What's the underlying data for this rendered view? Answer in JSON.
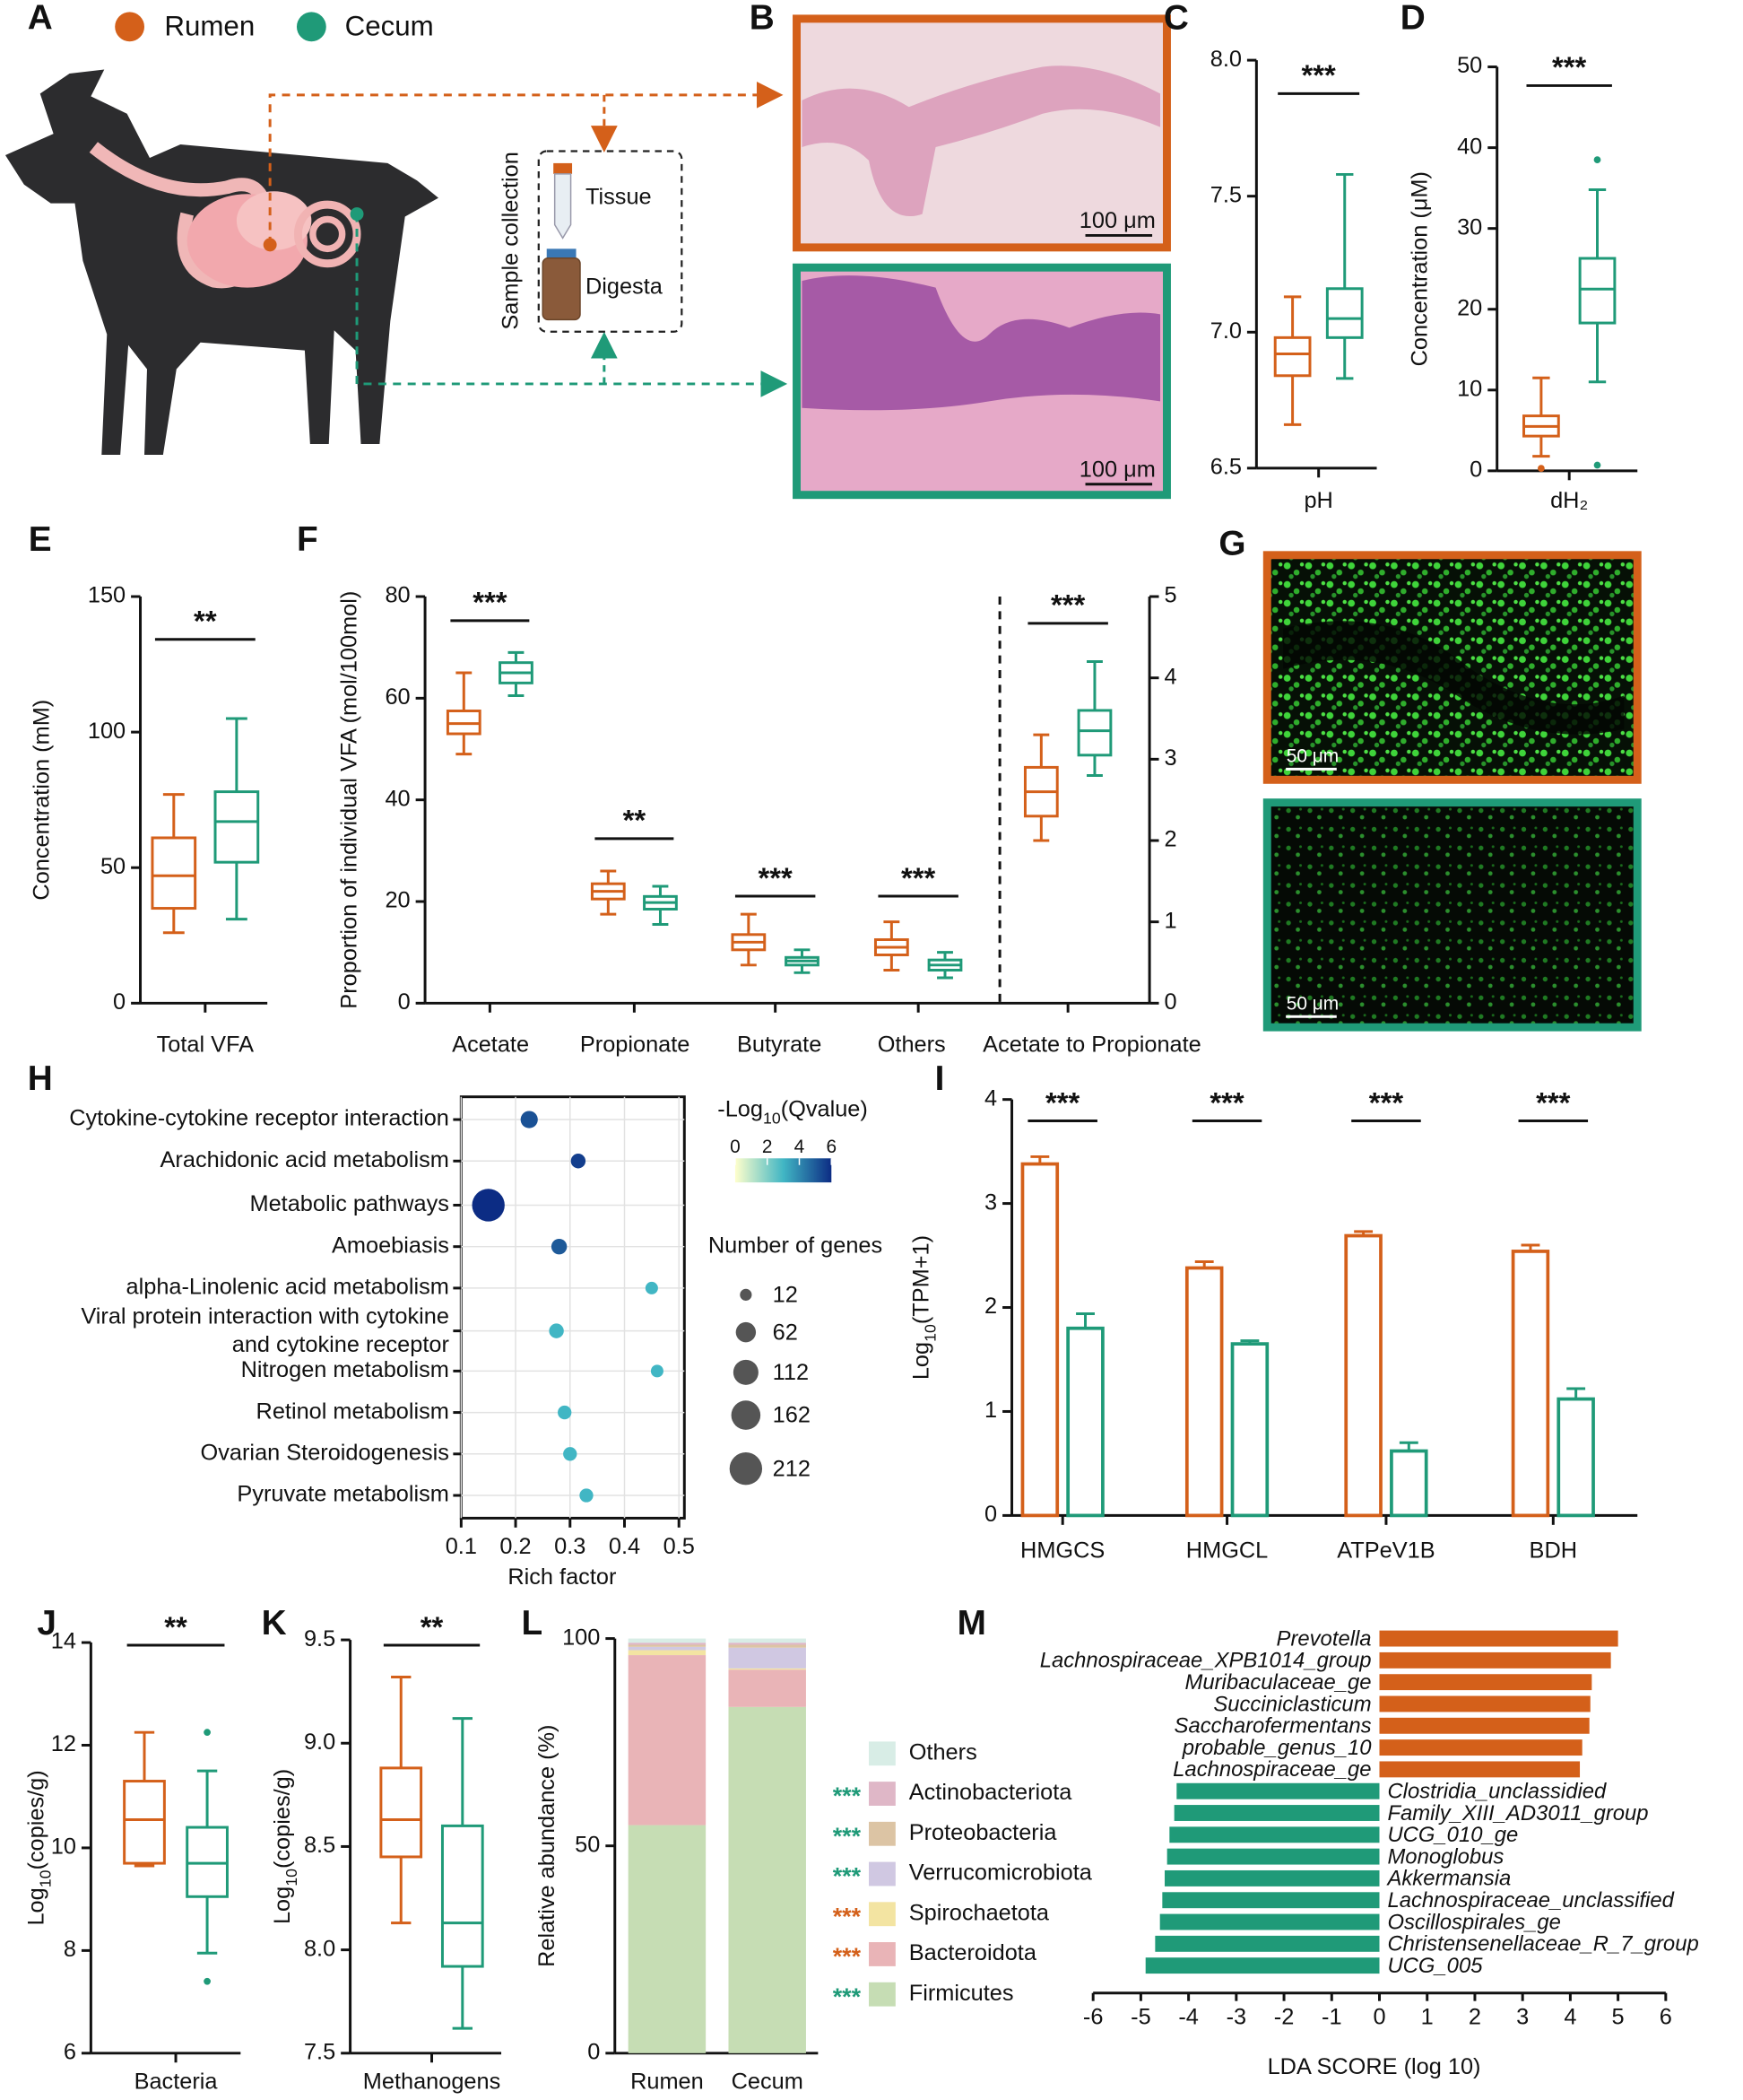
{
  "panel_letters": [
    "A",
    "B",
    "C",
    "D",
    "E",
    "F",
    "G",
    "H",
    "I",
    "J",
    "K",
    "L",
    "M"
  ],
  "panel_a": {
    "legend": [
      "Rumen",
      "Cecum"
    ],
    "legend_colors": [
      "#d4601a",
      "#1f9a78"
    ],
    "sample_collection": "Sample collection",
    "items": [
      "Tissue",
      "Digesta"
    ]
  },
  "panel_b": {
    "scale": [
      "100 μm",
      "100 μm"
    ]
  },
  "panel_g": {
    "scale": [
      "50 μm",
      "50 μm"
    ]
  },
  "chart_data": [
    {
      "type": "box",
      "categories": [
        "pH"
      ],
      "ylim": [
        6.5,
        8.0
      ],
      "yticks": [
        6.5,
        {
          "value": 7,
          "label": "7.0"
        },
        7.5,
        {
          "value": 8,
          "label": "8.0"
        }
      ],
      "series": [
        {
          "color": "#d4601a",
          "min": [
            6.66
          ],
          "q1": [
            6.84
          ],
          "median": [
            6.92
          ],
          "q3": [
            6.98
          ],
          "max": [
            7.13
          ]
        },
        {
          "color": "#1f9a78",
          "min": [
            6.83
          ],
          "q1": [
            6.98
          ],
          "median": [
            7.05
          ],
          "q3": [
            7.16
          ],
          "max": [
            7.58
          ]
        }
      ],
      "significance": [
        "***"
      ]
    },
    {
      "type": "box",
      "categories": [
        "dH₂"
      ],
      "ylim": [
        0,
        50
      ],
      "yticks": [
        0,
        10,
        20,
        30,
        40,
        50
      ],
      "ylabel": "Concentration (μM)",
      "series": [
        {
          "color": "#d4601a",
          "min": [
            1.8
          ],
          "q1": [
            4.3
          ],
          "median": [
            5.5
          ],
          "q3": [
            6.8
          ],
          "max": [
            11.5
          ],
          "outliers": [
            [
              0.3
            ]
          ]
        },
        {
          "color": "#1f9a78",
          "min": [
            11
          ],
          "q1": [
            18.3
          ],
          "median": [
            22.5
          ],
          "q3": [
            26.3
          ],
          "max": [
            34.8
          ],
          "outliers": [
            [
              38.5,
              0.7
            ]
          ]
        }
      ],
      "significance": [
        "***"
      ]
    },
    {
      "type": "box",
      "categories": [
        "Total VFA"
      ],
      "ylim": [
        0,
        150
      ],
      "yticks": [
        0,
        50,
        100,
        150
      ],
      "ylabel": "Concentration (mM)",
      "series": [
        {
          "color": "#d4601a",
          "min": [
            26
          ],
          "q1": [
            35
          ],
          "median": [
            47
          ],
          "q3": [
            61
          ],
          "max": [
            77
          ]
        },
        {
          "color": "#1f9a78",
          "min": [
            31
          ],
          "q1": [
            52
          ],
          "median": [
            67
          ],
          "q3": [
            78
          ],
          "max": [
            105
          ]
        }
      ],
      "significance": [
        "**"
      ]
    },
    {
      "type": "box",
      "categories": [
        "Acetate",
        "Propionate",
        "Butyrate",
        "Others",
        "Acetate to Propionate"
      ],
      "category_axis": [
        "y",
        "y",
        "y",
        "y",
        "y2"
      ],
      "ylim": [
        0,
        80
      ],
      "yticks": [
        0,
        20,
        40,
        60,
        80
      ],
      "y2lim": [
        0,
        5
      ],
      "y2ticks": [
        0,
        1,
        2,
        3,
        4,
        5
      ],
      "ylabel": "Proportion of individual VFA (mol/100mol)",
      "series": [
        {
          "color": "#d4601a",
          "min": [
            49,
            17.5,
            7.5,
            6.5,
            2.0
          ],
          "q1": [
            53,
            20.5,
            10.5,
            9.5,
            2.3
          ],
          "median": [
            55,
            22,
            12,
            11,
            2.6
          ],
          "q3": [
            57.5,
            23.5,
            13.5,
            12.5,
            2.9
          ],
          "max": [
            65,
            26,
            17.5,
            16,
            3.3
          ]
        },
        {
          "color": "#1f9a78",
          "min": [
            60.5,
            15.5,
            6,
            5,
            2.8
          ],
          "q1": [
            63,
            18.5,
            7.5,
            6.5,
            3.05
          ],
          "median": [
            65,
            19.8,
            8.3,
            7.5,
            3.35
          ],
          "q3": [
            67,
            21,
            9,
            8.5,
            3.6
          ],
          "max": [
            69,
            23,
            10.5,
            10,
            4.2
          ]
        }
      ],
      "significance": [
        "***",
        "**",
        "***",
        "***",
        "***"
      ]
    },
    {
      "type": "dot",
      "categories": [
        "Cytokine-cytokine receptor interaction",
        "Arachidonic acid metabolism",
        "Metabolic pathways",
        "Amoebiasis",
        "alpha-Linolenic acid metabolism",
        [
          "Viral protein interaction with cytokine",
          "and cytokine receptor"
        ],
        "Nitrogen metabolism",
        "Retinol metabolism",
        "Ovarian Steroidogenesis",
        "Pyruvate metabolism"
      ],
      "x": [
        0.225,
        0.315,
        0.15,
        0.28,
        0.45,
        0.275,
        0.46,
        0.29,
        0.3,
        0.33
      ],
      "sizes": [
        40,
        25,
        212,
        30,
        15,
        25,
        15,
        20,
        20,
        20
      ],
      "color_values": [
        5.2,
        5.6,
        6,
        5,
        3,
        3,
        3,
        3,
        3,
        3
      ],
      "xlim": [
        0.1,
        0.51
      ],
      "xticks": [
        0.1,
        0.2,
        0.3,
        0.4,
        0.5
      ],
      "xlabel": "Rich factor",
      "grid": true,
      "colorbar_title": [
        "-Log",
        "10",
        "(Qvalue)"
      ],
      "colorbar_lim": [
        0,
        6
      ],
      "colorbar_ticks": [
        0,
        2,
        4,
        6
      ],
      "colorscale": [
        "#ffffcc",
        "#41b6c4",
        "#0c2c84"
      ],
      "size_title": "Number of genes",
      "size_legend": [
        12,
        62,
        112,
        162,
        212
      ]
    },
    {
      "type": "bar",
      "categories": [
        "HMGCS",
        "HMGCL",
        "ATPeV1B",
        "BDH"
      ],
      "ylim": [
        0,
        4
      ],
      "yticks": [
        0,
        1,
        2,
        3,
        4
      ],
      "ylabel": [
        "Log",
        "10",
        "(TPM+1)"
      ],
      "series": [
        {
          "color": "#d4601a",
          "values": [
            3.38,
            2.38,
            2.69,
            2.54
          ],
          "errors": [
            0.07,
            0.06,
            0.04,
            0.06
          ]
        },
        {
          "color": "#1f9a78",
          "values": [
            1.8,
            1.65,
            0.62,
            1.12
          ],
          "errors": [
            0.14,
            0.03,
            0.08,
            0.1
          ]
        }
      ],
      "significance": [
        "***",
        "***",
        "***",
        "***"
      ]
    },
    {
      "type": "box",
      "categories": [
        "Bacteria"
      ],
      "ylim": [
        6,
        14
      ],
      "yticks": [
        6,
        8,
        10,
        12,
        14
      ],
      "ylabel": [
        "Log",
        "10",
        "(copies/g)"
      ],
      "series": [
        {
          "color": "#d4601a",
          "min": [
            9.65
          ],
          "q1": [
            9.7
          ],
          "median": [
            10.55
          ],
          "q3": [
            11.3
          ],
          "max": [
            12.25
          ]
        },
        {
          "color": "#1f9a78",
          "min": [
            7.95
          ],
          "q1": [
            9.05
          ],
          "median": [
            9.7
          ],
          "q3": [
            10.4
          ],
          "max": [
            11.5
          ],
          "outliers": [
            [
              12.25,
              7.4
            ]
          ]
        }
      ],
      "significance": [
        "**"
      ]
    },
    {
      "type": "box",
      "categories": [
        "Methanogens"
      ],
      "ylim": [
        7.5,
        9.5
      ],
      "yticks": [
        7.5,
        {
          "value": 8,
          "label": "8.0"
        },
        8.5,
        {
          "value": 9,
          "label": "9.0"
        },
        9.5
      ],
      "ylabel": [
        "Log",
        "10",
        "(copies/g)"
      ],
      "series": [
        {
          "color": "#d4601a",
          "min": [
            8.13
          ],
          "q1": [
            8.45
          ],
          "median": [
            8.63
          ],
          "q3": [
            8.88
          ],
          "max": [
            9.32
          ]
        },
        {
          "color": "#1f9a78",
          "min": [
            7.62
          ],
          "q1": [
            7.92
          ],
          "median": [
            8.13
          ],
          "q3": [
            8.6
          ],
          "max": [
            9.12
          ]
        }
      ],
      "significance": [
        "**"
      ]
    },
    {
      "type": "stacked_bar",
      "categories": [
        "Rumen",
        "Cecum"
      ],
      "ylim": [
        0,
        100
      ],
      "yticks": [
        0,
        50,
        100
      ],
      "ylabel": "Relative abundance (%)",
      "series": [
        {
          "name": "Firmicutes",
          "color": "#c6ddb4",
          "values": [
            55,
            83.5
          ],
          "significance": "***",
          "significance_color": "#1f9a78"
        },
        {
          "name": "Bacteroidota",
          "color": "#e9b4b7",
          "values": [
            41,
            9
          ],
          "significance": "***",
          "significance_color": "#d4601a"
        },
        {
          "name": "Spirochaetota",
          "color": "#f3e4a2",
          "values": [
            1.2,
            0.3
          ],
          "significance": "***",
          "significance_color": "#d4601a"
        },
        {
          "name": "Verrucomicrobiota",
          "color": "#d0c8e2",
          "values": [
            0.8,
            5
          ],
          "significance": "***",
          "significance_color": "#1f9a78"
        },
        {
          "name": "Proteobacteria",
          "color": "#dcc4a4",
          "values": [
            0.5,
            0.7
          ],
          "significance": "***",
          "significance_color": "#1f9a78"
        },
        {
          "name": "Actinobacteriota",
          "color": "#dfb7c7",
          "values": [
            0.5,
            0.5
          ],
          "significance": "***",
          "significance_color": "#1f9a78"
        },
        {
          "name": "Others",
          "color": "#d8ede6",
          "values": [
            1,
            1
          ]
        }
      ]
    },
    {
      "type": "hbar",
      "categories": [
        "Prevotella",
        "Lachnospiraceae_XPB1014_group",
        "Muribaculaceae_ge",
        "Succiniclasticum",
        "Saccharofermentans",
        "probable_genus_10",
        "Lachnospiraceae_ge",
        "Clostridia_unclassidied",
        "Family_XIII_AD3011_group",
        "UCG_010_ge",
        "Monoglobus",
        "Akkermansia",
        "Lachnospiraceae_unclassified",
        "Oscillospirales_ge",
        "Christensenellaceae_R_7_group",
        "UCG_005"
      ],
      "values": [
        5.0,
        4.85,
        4.45,
        4.42,
        4.4,
        4.25,
        4.2,
        -4.25,
        -4.3,
        -4.4,
        -4.45,
        -4.5,
        -4.55,
        -4.6,
        -4.7,
        -4.9
      ],
      "xlim": [
        -6,
        6
      ],
      "xticks": [
        -6,
        -5,
        -4,
        -3,
        -2,
        -1,
        0,
        1,
        2,
        3,
        4,
        5,
        6
      ],
      "xlabel": "LDA SCORE (log 10)",
      "positive_color": "#d4601a",
      "negative_color": "#1f9a78"
    }
  ]
}
